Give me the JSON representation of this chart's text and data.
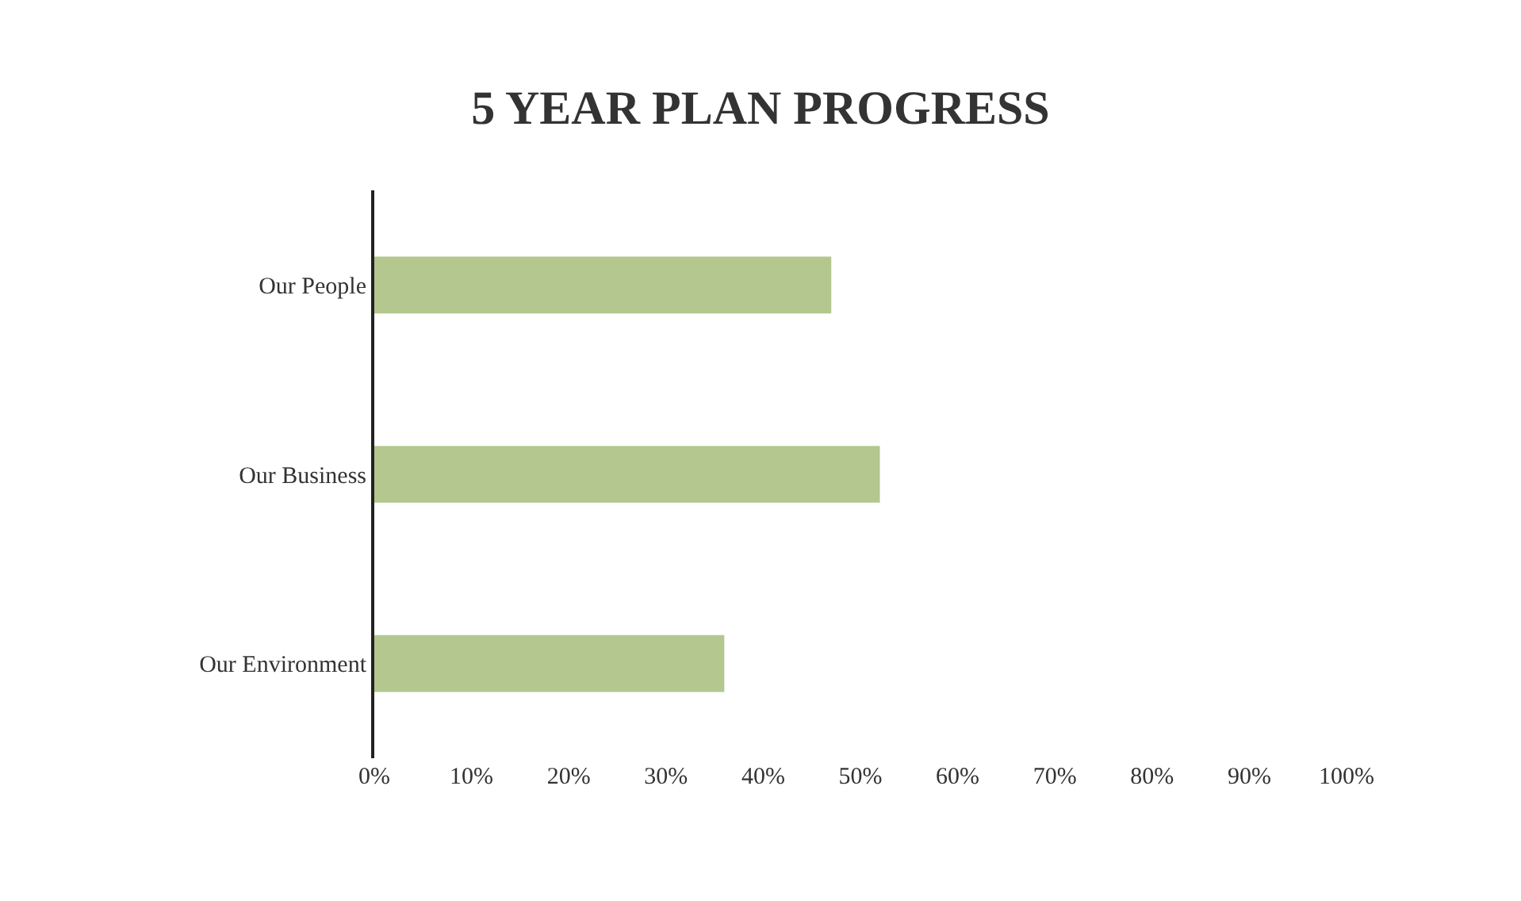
{
  "chart_data": {
    "type": "bar",
    "orientation": "horizontal",
    "title": "5 YEAR PLAN PROGRESS",
    "categories": [
      "Our People",
      "Our Business",
      "Our Environment"
    ],
    "values": [
      47,
      52,
      36
    ],
    "color": "#b3c78f",
    "xlim": [
      0,
      100
    ],
    "xticks": [
      {
        "value": 0,
        "label": "0%"
      },
      {
        "value": 10,
        "label": "10%"
      },
      {
        "value": 20,
        "label": "20%"
      },
      {
        "value": 30,
        "label": "30%"
      },
      {
        "value": 40,
        "label": "40%"
      },
      {
        "value": 50,
        "label": "50%"
      },
      {
        "value": 60,
        "label": "60%"
      },
      {
        "value": 70,
        "label": "70%"
      },
      {
        "value": 80,
        "label": "80%"
      },
      {
        "value": 90,
        "label": "90%"
      },
      {
        "value": 100,
        "label": "100%"
      }
    ],
    "grid": false,
    "legend": false
  }
}
